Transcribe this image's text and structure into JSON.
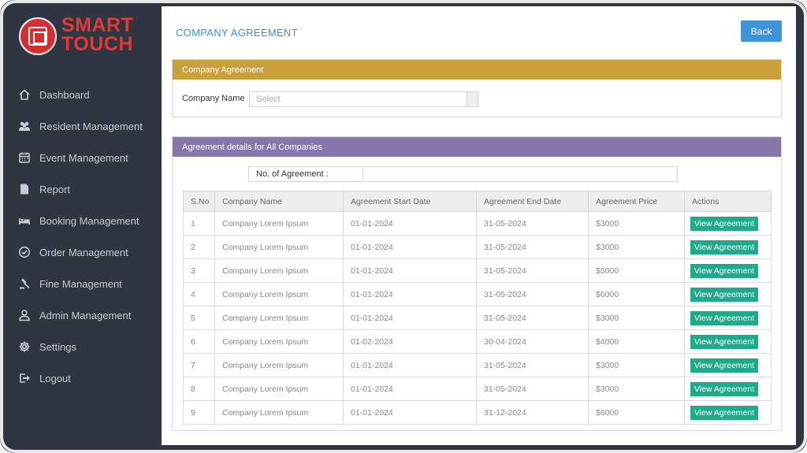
{
  "brand": {
    "line1": "SMART",
    "line2": "TOUCH",
    "color": "#e53935"
  },
  "nav": [
    {
      "label": "Dashboard",
      "icon": "home-icon"
    },
    {
      "label": "Resident Management",
      "icon": "users-icon"
    },
    {
      "label": "Event Management",
      "icon": "calendar-icon"
    },
    {
      "label": "Report",
      "icon": "document-icon"
    },
    {
      "label": "Booking Management",
      "icon": "bed-icon"
    },
    {
      "label": "Order Management",
      "icon": "check-circle-icon"
    },
    {
      "label": "Fine Management",
      "icon": "gavel-icon"
    },
    {
      "label": "Admin Management",
      "icon": "user-icon"
    },
    {
      "label": "Settings",
      "icon": "gear-icon"
    },
    {
      "label": "Logout",
      "icon": "logout-icon"
    }
  ],
  "header": {
    "title": "COMPANY AGREEMENT",
    "back_label": "Back"
  },
  "company_section": {
    "title": "Company Agreement",
    "field_label": "Company Name",
    "select_placeholder": "Select"
  },
  "details_section": {
    "title": "Agreement details for All Companies",
    "count_label": "No. of Agreement :",
    "count_value": ""
  },
  "table": {
    "columns": [
      "S.No",
      "Company Name",
      "Agreement Start Date",
      "Agreement End Date",
      "Agreement Price",
      "Actions"
    ],
    "rows": [
      {
        "sno": "1",
        "name": "Company Lorem Ipsum",
        "start": "01-01-2024",
        "end": "31-05-2024",
        "price": "$3000",
        "action": "View Agreement"
      },
      {
        "sno": "2",
        "name": "Company Lorem Ipsum",
        "start": "01-01-2024",
        "end": "31-05-2024",
        "price": "$3000",
        "action": "View Agreement"
      },
      {
        "sno": "3",
        "name": "Company Lorem Ipsum",
        "start": "01-01-2024",
        "end": "31-05-2024",
        "price": "$5000",
        "action": "View Agreement"
      },
      {
        "sno": "4",
        "name": "Company Lorem Ipsum",
        "start": "01-01-2024",
        "end": "31-05-2024",
        "price": "$6000",
        "action": "View Agreement"
      },
      {
        "sno": "5",
        "name": "Company Lorem Ipsum",
        "start": "01-01-2024",
        "end": "31-05-2024",
        "price": "$3000",
        "action": "View Agreement"
      },
      {
        "sno": "6",
        "name": "Company Lorem Ipsum",
        "start": "01-02-2024",
        "end": "30-04-2024",
        "price": "$4000",
        "action": "View Agreement"
      },
      {
        "sno": "7",
        "name": "Company Lorem Ipsum",
        "start": "01-01-2024",
        "end": "31-05-2024",
        "price": "$3000",
        "action": "View Agreement"
      },
      {
        "sno": "8",
        "name": "Company Lorem Ipsum",
        "start": "01-01-2024",
        "end": "31-05-2024",
        "price": "$3000",
        "action": "View Agreement"
      },
      {
        "sno": "9",
        "name": "Company Lorem Ipsum",
        "start": "01-01-2024",
        "end": "31-12-2024",
        "price": "$6000",
        "action": "View Agreement"
      }
    ]
  },
  "colors": {
    "sidebar": "#2f3541",
    "accent_blue": "#3f93d9",
    "section_gold": "#c8a13c",
    "section_purple": "#8877aa",
    "action_green": "#1faa8c"
  }
}
